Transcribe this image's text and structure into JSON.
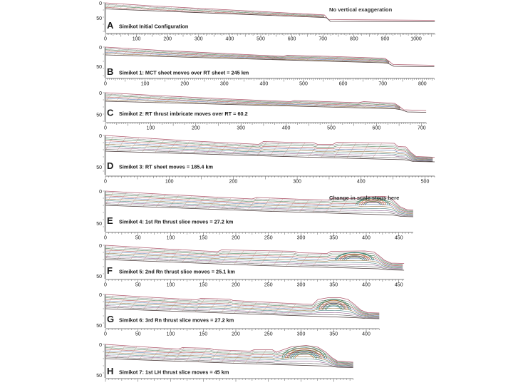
{
  "figure": {
    "type": "geological-cross-section-restoration",
    "global_annotations": {
      "panel_a_note": "No vertical exaggeration",
      "panel_e_note": "Change in scale stops here"
    },
    "y_axis": {
      "top_label": "0",
      "bottom_label": "50"
    },
    "colors": {
      "outline_top": "#b05a6e",
      "outline_base": "#4a3a3a",
      "axis": "#555555",
      "text": "#1a1a1a",
      "tick_text": "#222222",
      "annotation_text": "#333333",
      "texture": "#bb8878",
      "strata": [
        "#888888",
        "#3f7a4f",
        "#a84848",
        "#5b79ad",
        "#8a6b3a",
        "#3f7a7a",
        "#8a5c8a",
        "#555555"
      ],
      "fan": [
        "#3f7a4f",
        "#2e7d7d",
        "#c07a3a",
        "#a84848",
        "#74743a",
        "#4f5f8a"
      ]
    },
    "panels": [
      {
        "letter": "A",
        "caption": "Simikot Initial Configuration",
        "annotation": "No vertical exaggeration",
        "x_axis": {
          "tick_labels": [
            0,
            100,
            200,
            300,
            400,
            500,
            600,
            700,
            800,
            900,
            1000
          ],
          "label_step": 100,
          "axis_end_km": 1060
        }
      },
      {
        "letter": "B",
        "caption": "Simikot 1:  MCT sheet moves over RT sheet = 245 km",
        "annotation": "",
        "x_axis": {
          "tick_labels": [
            0,
            100,
            200,
            300,
            400,
            500,
            600,
            700,
            800
          ],
          "label_step": 100,
          "axis_end_km": 830
        }
      },
      {
        "letter": "C",
        "caption": "Simikot 2:  RT thrust imbricate moves over RT = 60.2",
        "annotation": "",
        "x_axis": {
          "tick_labels": [
            0,
            100,
            200,
            300,
            400,
            500,
            600,
            700
          ],
          "label_step": 100,
          "axis_end_km": 710
        }
      },
      {
        "letter": "D",
        "caption": "Simikot 3:  RT sheet moves = 185.4 km",
        "annotation": "",
        "x_axis": {
          "tick_labels": [
            0,
            100,
            200,
            300,
            400,
            500
          ],
          "label_step": 100,
          "axis_end_km": 515
        }
      },
      {
        "letter": "E",
        "caption": "Simikot 4: 1st Rn thrust slice moves = 27.2 km",
        "annotation": "Change in scale stops here",
        "x_axis": {
          "tick_labels": [
            0,
            50,
            100,
            150,
            200,
            250,
            300,
            350,
            400,
            450
          ],
          "label_step": 50,
          "axis_end_km": 472
        }
      },
      {
        "letter": "F",
        "caption": "Simikot 5:  2nd Rn thrust slice moves = 25.1 km",
        "annotation": "",
        "x_axis": {
          "tick_labels": [
            0,
            50,
            100,
            150,
            200,
            250,
            300,
            350,
            400,
            450
          ],
          "label_step": 50,
          "axis_end_km": 458
        }
      },
      {
        "letter": "G",
        "caption": "Simikot 6:  3rd Rn thrust slice moves = 27.2 km",
        "annotation": "",
        "x_axis": {
          "tick_labels": [
            0,
            50,
            100,
            150,
            200,
            250,
            300,
            350,
            400
          ],
          "label_step": 50,
          "axis_end_km": 420
        }
      },
      {
        "letter": "H",
        "caption": "Simikot 7:  1st LH thrust slice moves = 45 km",
        "annotation": "",
        "x_axis": {
          "tick_labels": [],
          "label_step": 50,
          "axis_end_km": 380
        }
      }
    ]
  }
}
